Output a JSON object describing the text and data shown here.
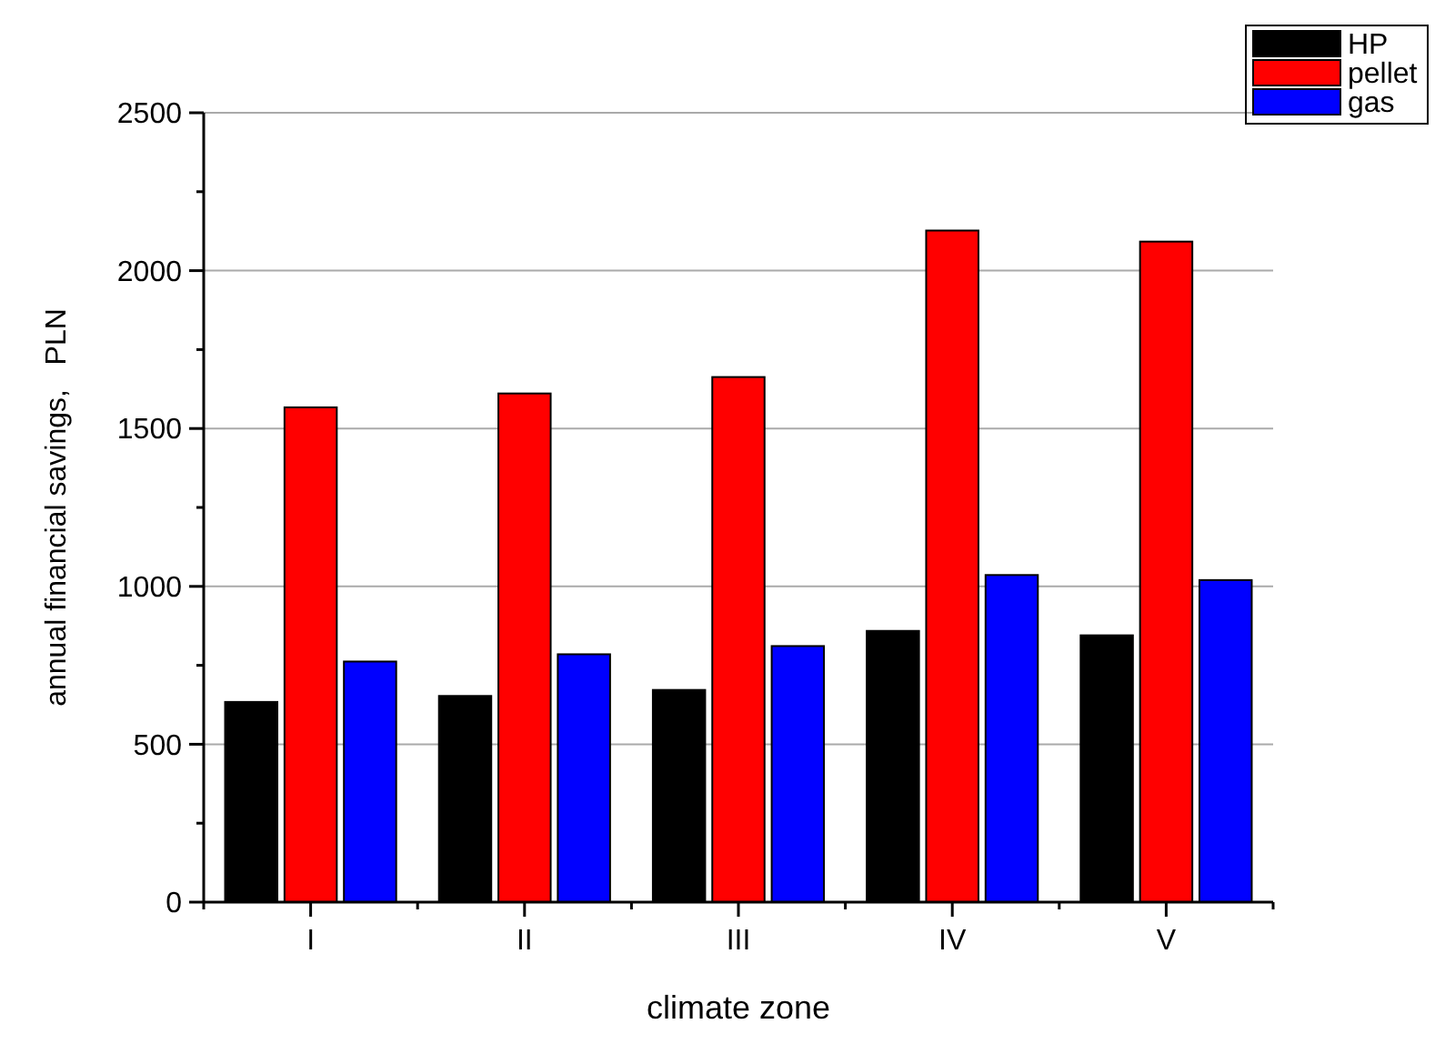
{
  "chart_data": {
    "type": "bar",
    "xlabel": "climate zone",
    "ylabel": "annual financial savings,   PLN",
    "categories": [
      "I",
      "II",
      "III",
      "IV",
      "V"
    ],
    "series": [
      {
        "name": "HP",
        "color": "#000000",
        "values": [
          634,
          653,
          672,
          859,
          845
        ]
      },
      {
        "name": "pellet",
        "color": "#ff0000",
        "values": [
          1567,
          1611,
          1663,
          2127,
          2092
        ]
      },
      {
        "name": "gas",
        "color": "#0000ff",
        "values": [
          762,
          785,
          811,
          1036,
          1020
        ]
      }
    ],
    "ylim": [
      0,
      2500
    ],
    "yticks": [
      0,
      500,
      1000,
      1500,
      2000,
      2500
    ],
    "grid": "y",
    "legend": "top right"
  }
}
